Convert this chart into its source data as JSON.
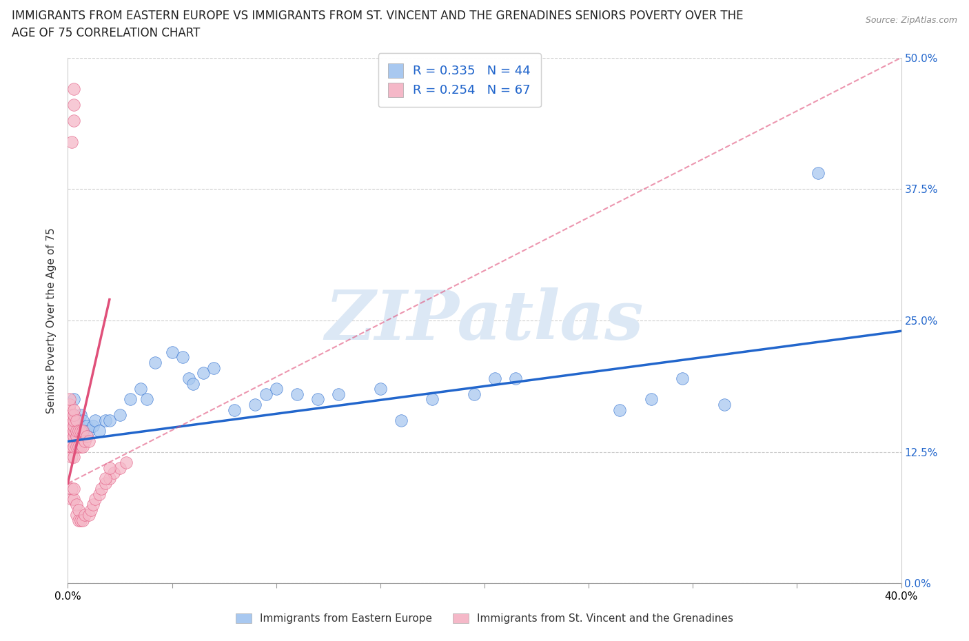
{
  "title_line1": "IMMIGRANTS FROM EASTERN EUROPE VS IMMIGRANTS FROM ST. VINCENT AND THE GRENADINES SENIORS POVERTY OVER THE",
  "title_line2": "AGE OF 75 CORRELATION CHART",
  "source": "Source: ZipAtlas.com",
  "ylabel": "Seniors Poverty Over the Age of 75",
  "xlabel_blue": "Immigrants from Eastern Europe",
  "xlabel_pink": "Immigrants from St. Vincent and the Grenadines",
  "R_blue": 0.335,
  "N_blue": 44,
  "R_pink": 0.254,
  "N_pink": 67,
  "xlim": [
    0.0,
    0.4
  ],
  "ylim": [
    0.0,
    0.5
  ],
  "xticks": [
    0.0,
    0.05,
    0.1,
    0.15,
    0.2,
    0.25,
    0.3,
    0.35,
    0.4
  ],
  "yticks": [
    0.0,
    0.125,
    0.25,
    0.375,
    0.5
  ],
  "color_blue": "#a8c8f0",
  "color_pink": "#f5b8c8",
  "trendline_blue": "#2266cc",
  "trendline_pink": "#e0507a",
  "watermark": "ZIPatlas",
  "watermark_color": "#dce8f5",
  "background_color": "#ffffff",
  "blue_x": [
    0.002,
    0.003,
    0.003,
    0.004,
    0.005,
    0.006,
    0.007,
    0.008,
    0.009,
    0.01,
    0.012,
    0.013,
    0.015,
    0.018,
    0.02,
    0.025,
    0.03,
    0.035,
    0.038,
    0.042,
    0.05,
    0.055,
    0.058,
    0.06,
    0.065,
    0.07,
    0.08,
    0.09,
    0.095,
    0.1,
    0.11,
    0.12,
    0.13,
    0.15,
    0.16,
    0.175,
    0.195,
    0.205,
    0.215,
    0.265,
    0.28,
    0.295,
    0.315,
    0.36
  ],
  "blue_y": [
    0.155,
    0.16,
    0.175,
    0.15,
    0.155,
    0.16,
    0.155,
    0.145,
    0.15,
    0.145,
    0.15,
    0.155,
    0.145,
    0.155,
    0.155,
    0.16,
    0.175,
    0.185,
    0.175,
    0.21,
    0.22,
    0.215,
    0.195,
    0.19,
    0.2,
    0.205,
    0.165,
    0.17,
    0.18,
    0.185,
    0.18,
    0.175,
    0.18,
    0.185,
    0.155,
    0.175,
    0.18,
    0.195,
    0.195,
    0.165,
    0.175,
    0.195,
    0.17,
    0.39
  ],
  "pink_x": [
    0.001,
    0.001,
    0.001,
    0.001,
    0.001,
    0.001,
    0.001,
    0.001,
    0.001,
    0.001,
    0.002,
    0.002,
    0.002,
    0.002,
    0.002,
    0.002,
    0.002,
    0.002,
    0.002,
    0.002,
    0.003,
    0.003,
    0.003,
    0.003,
    0.003,
    0.003,
    0.003,
    0.003,
    0.003,
    0.003,
    0.004,
    0.004,
    0.004,
    0.004,
    0.004,
    0.004,
    0.005,
    0.005,
    0.005,
    0.005,
    0.006,
    0.006,
    0.006,
    0.007,
    0.007,
    0.007,
    0.008,
    0.008,
    0.009,
    0.01,
    0.01,
    0.011,
    0.012,
    0.013,
    0.015,
    0.016,
    0.018,
    0.02,
    0.022,
    0.025,
    0.028,
    0.002,
    0.003,
    0.003,
    0.003,
    0.018,
    0.02
  ],
  "pink_y": [
    0.13,
    0.135,
    0.14,
    0.145,
    0.15,
    0.155,
    0.16,
    0.165,
    0.17,
    0.175,
    0.08,
    0.09,
    0.12,
    0.13,
    0.135,
    0.14,
    0.145,
    0.15,
    0.155,
    0.16,
    0.08,
    0.09,
    0.12,
    0.13,
    0.14,
    0.145,
    0.15,
    0.155,
    0.16,
    0.165,
    0.065,
    0.075,
    0.13,
    0.14,
    0.145,
    0.155,
    0.06,
    0.07,
    0.13,
    0.145,
    0.06,
    0.13,
    0.145,
    0.06,
    0.13,
    0.145,
    0.065,
    0.135,
    0.14,
    0.065,
    0.135,
    0.07,
    0.075,
    0.08,
    0.085,
    0.09,
    0.095,
    0.1,
    0.105,
    0.11,
    0.115,
    0.42,
    0.44,
    0.455,
    0.47,
    0.1,
    0.11
  ],
  "blue_trend_x0": 0.0,
  "blue_trend_y0": 0.135,
  "blue_trend_x1": 0.4,
  "blue_trend_y1": 0.24,
  "pink_trend_solid_x0": 0.0,
  "pink_trend_solid_y0": 0.095,
  "pink_trend_solid_x1": 0.02,
  "pink_trend_solid_y1": 0.27,
  "pink_trend_dash_x0": 0.0,
  "pink_trend_dash_y0": 0.095,
  "pink_trend_dash_x1": 0.4,
  "pink_trend_dash_y1": 0.5
}
